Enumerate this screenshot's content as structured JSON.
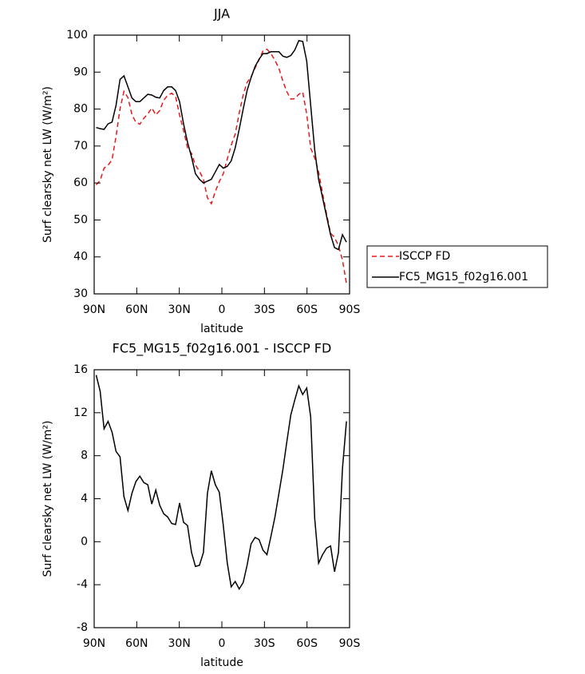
{
  "chart_data": [
    {
      "type": "line",
      "title": "JJA",
      "xlabel": "latitude",
      "ylabel": "Surf clearsky net LW (W/m²)",
      "x": [
        88.6,
        85.8,
        83.0,
        80.2,
        77.4,
        74.6,
        71.8,
        69.0,
        66.2,
        63.4,
        60.6,
        57.8,
        55.0,
        52.2,
        49.4,
        46.6,
        43.8,
        41.0,
        38.2,
        35.4,
        32.6,
        29.8,
        27.0,
        24.2,
        21.4,
        18.6,
        15.8,
        13.0,
        10.2,
        7.4,
        4.6,
        1.8,
        -1.0,
        -3.8,
        -6.6,
        -9.4,
        -12.2,
        -15.0,
        -17.8,
        -20.6,
        -23.4,
        -26.2,
        -29.0,
        -31.8,
        -34.6,
        -37.4,
        -40.2,
        -43.0,
        -45.8,
        -48.6,
        -51.4,
        -54.2,
        -57.0,
        -59.8,
        -62.6,
        -65.4,
        -68.2,
        -71.0,
        -73.8,
        -76.6,
        -79.4,
        -82.2,
        -85.0,
        -87.8
      ],
      "series": [
        {
          "name": "ISCCP FD",
          "color": "#e8181c",
          "dash": true,
          "values": [
            59.5,
            60.7,
            64,
            64.8,
            66.3,
            72.6,
            80.1,
            84.8,
            83.1,
            78.5,
            76.4,
            75.9,
            77.5,
            78.7,
            80.3,
            78.4,
            79.6,
            82.4,
            83.7,
            84.3,
            83.4,
            78.4,
            74.2,
            69.5,
            68,
            64.8,
            63.2,
            61,
            56,
            54.4,
            57.7,
            60.4,
            62.5,
            66.5,
            70.2,
            73.2,
            78.9,
            83.8,
            87.2,
            88.7,
            91.1,
            93.3,
            95.8,
            96.2,
            95,
            93.2,
            91,
            87.6,
            84.7,
            82.7,
            82.8,
            84,
            84.6,
            78.7,
            69.4,
            66.8,
            63,
            57.2,
            51.6,
            46.4,
            45.3,
            43,
            39.2,
            32.8
          ]
        },
        {
          "name": "FC5_MG15_f02g16.001",
          "color": "#000000",
          "dash": false,
          "values": [
            75,
            74.7,
            74.5,
            76,
            76.5,
            81,
            88,
            89,
            86,
            83,
            82,
            82,
            83,
            84,
            83.8,
            83.2,
            83,
            85,
            86,
            86,
            85,
            82,
            76,
            71,
            67,
            62.5,
            61,
            60,
            60.5,
            61,
            63,
            65,
            64,
            64.5,
            66,
            69.5,
            74.5,
            80,
            85,
            88.5,
            91.5,
            93.5,
            95,
            95,
            95.5,
            95.5,
            95.5,
            94.3,
            94,
            94.5,
            96,
            98.5,
            98.3,
            93,
            81,
            69,
            61,
            56,
            51,
            46,
            42.5,
            42,
            46,
            44
          ]
        }
      ],
      "xlim": [
        90,
        -90
      ],
      "xticks": [
        {
          "value": 90,
          "label": "90N"
        },
        {
          "value": 60,
          "label": "60N"
        },
        {
          "value": 30,
          "label": "30N"
        },
        0,
        {
          "value": -30,
          "label": "30S"
        },
        {
          "value": -60,
          "label": "60S"
        },
        {
          "value": -90,
          "label": "90S"
        }
      ],
      "ylim": [
        30,
        100
      ],
      "yticks": [
        30,
        40,
        50,
        60,
        70,
        80,
        90,
        100
      ],
      "legend": "right"
    },
    {
      "type": "line",
      "title": "FC5_MG15_f02g16.001 - ISCCP FD",
      "xlabel": "latitude",
      "ylabel": "Surf clearsky net LW (W/m²)",
      "x": [
        88.6,
        85.8,
        83.0,
        80.2,
        77.4,
        74.6,
        71.8,
        69.0,
        66.2,
        63.4,
        60.6,
        57.8,
        55.0,
        52.2,
        49.4,
        46.6,
        43.8,
        41.0,
        38.2,
        35.4,
        32.6,
        29.8,
        27.0,
        24.2,
        21.4,
        18.6,
        15.8,
        13.0,
        10.2,
        7.4,
        4.6,
        1.8,
        -1.0,
        -3.8,
        -6.6,
        -9.4,
        -12.2,
        -15.0,
        -17.8,
        -20.6,
        -23.4,
        -26.2,
        -29.0,
        -31.8,
        -34.6,
        -37.4,
        -40.2,
        -43.0,
        -45.8,
        -48.6,
        -51.4,
        -54.2,
        -57.0,
        -59.8,
        -62.6,
        -65.4,
        -68.2,
        -71.0,
        -73.8,
        -76.6,
        -79.4,
        -82.2,
        -85.0,
        -87.8
      ],
      "color": "#000000",
      "values": [
        15.5,
        14,
        10.5,
        11.2,
        10.2,
        8.4,
        7.9,
        4.2,
        2.9,
        4.5,
        5.6,
        6.1,
        5.5,
        5.3,
        3.5,
        4.8,
        3.4,
        2.6,
        2.3,
        1.7,
        1.6,
        3.6,
        1.8,
        1.5,
        -1.0,
        -2.3,
        -2.2,
        -1.0,
        4.5,
        6.6,
        5.3,
        4.6,
        1.5,
        -2.0,
        -4.2,
        -3.7,
        -4.4,
        -3.8,
        -2.2,
        -0.2,
        0.4,
        0.2,
        -0.8,
        -1.2,
        0.5,
        2.3,
        4.5,
        6.7,
        9.3,
        11.8,
        13.2,
        14.5,
        13.7,
        14.3,
        11.6,
        2.2,
        -2.0,
        -1.2,
        -0.6,
        -0.4,
        -2.8,
        -1.0,
        6.8,
        11.2
      ],
      "xlim": [
        90,
        -90
      ],
      "xticks": [
        {
          "value": 90,
          "label": "90N"
        },
        {
          "value": 60,
          "label": "60N"
        },
        {
          "value": 30,
          "label": "30N"
        },
        0,
        {
          "value": -30,
          "label": "30S"
        },
        {
          "value": -60,
          "label": "60S"
        },
        {
          "value": -90,
          "label": "90S"
        }
      ],
      "ylim": [
        -8,
        16
      ],
      "yticks": [
        -8,
        -4,
        0,
        4,
        8,
        12,
        16
      ]
    }
  ]
}
